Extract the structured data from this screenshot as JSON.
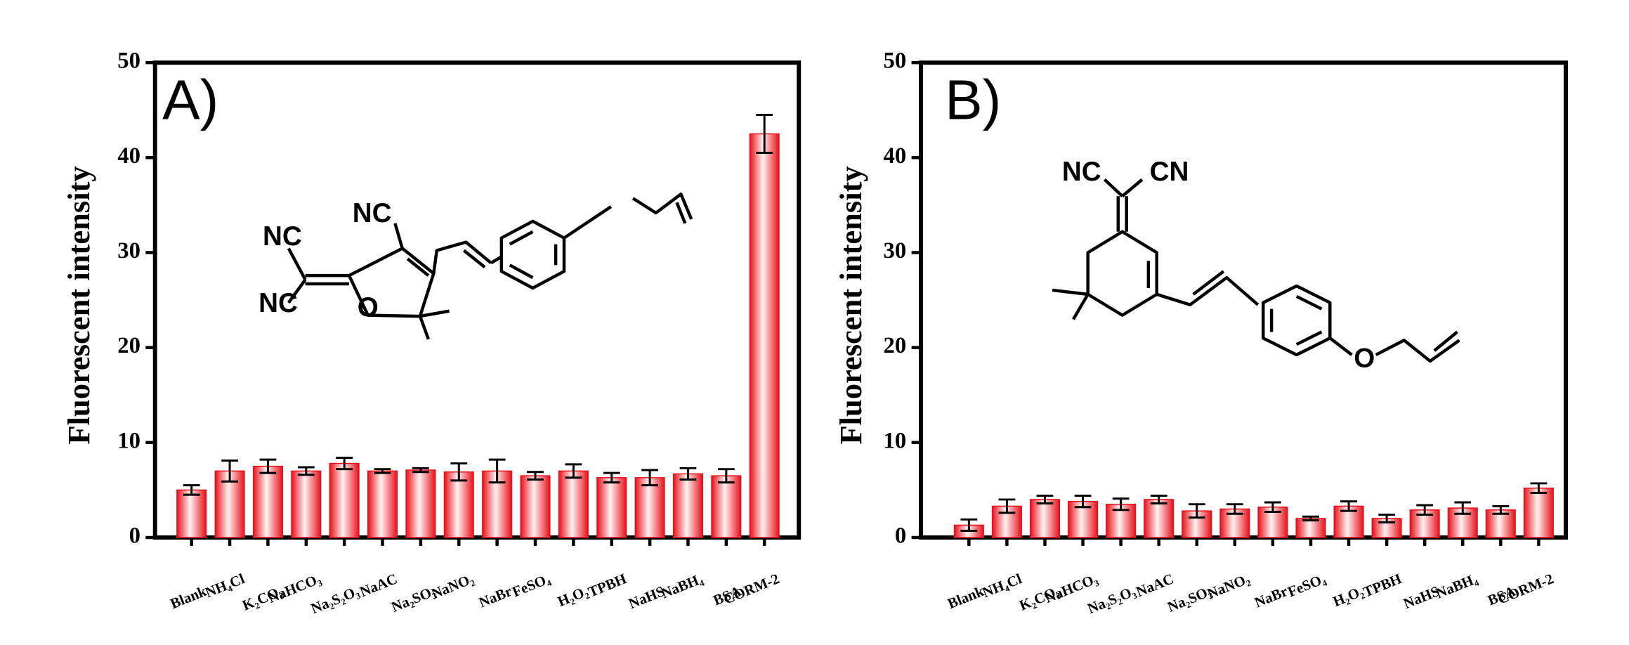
{
  "chart_data": [
    {
      "type": "bar",
      "panel_label": "A)",
      "y_label": "Fluorescent intensity",
      "categories": [
        "Blank",
        "NH₄Cl",
        "K₂CO₃",
        "NaHCO₃",
        "Na₂S₂O₃",
        "NaAC",
        "Na₂SO₃",
        "NaNO₂",
        "NaBr",
        "FeSO₄",
        "H₂O₂",
        "TPBH",
        "NaHS",
        "NaBH₄",
        "BSA",
        "CORM-2"
      ],
      "values": [
        5.0,
        7.0,
        7.5,
        7.0,
        7.8,
        7.0,
        7.1,
        6.9,
        7.0,
        6.5,
        7.0,
        6.3,
        6.3,
        6.7,
        6.5,
        42.5
      ],
      "errors": [
        0.5,
        1.1,
        0.7,
        0.4,
        0.6,
        0.2,
        0.2,
        0.9,
        1.2,
        0.4,
        0.7,
        0.5,
        0.8,
        0.6,
        0.7,
        2.0
      ],
      "color": "#e8101a",
      "ylim": [
        0,
        50
      ],
      "yticks": [
        0,
        10,
        20,
        30,
        40,
        50
      ],
      "annotations": [
        "NC",
        "NC",
        "NC",
        "O"
      ]
    },
    {
      "type": "bar",
      "panel_label": "B)",
      "y_label": "Fluorescent intensity",
      "categories": [
        "Blank",
        "NH₄Cl",
        "K₂CO₃",
        "NaHCO₃",
        "Na₂S₂O₃",
        "NaAC",
        "Na₂SO₃",
        "NaNO₂",
        "NaBr",
        "FeSO₄",
        "H₂O₂",
        "TPBH",
        "NaHS",
        "NaBH₄",
        "BSA",
        "CORM-2"
      ],
      "values": [
        1.3,
        3.3,
        4.0,
        3.8,
        3.5,
        4.0,
        2.8,
        3.0,
        3.2,
        2.0,
        3.3,
        2.0,
        2.9,
        3.1,
        2.9,
        5.2
      ],
      "errors": [
        0.6,
        0.7,
        0.4,
        0.6,
        0.6,
        0.4,
        0.7,
        0.5,
        0.5,
        0.2,
        0.5,
        0.4,
        0.5,
        0.6,
        0.4,
        0.5
      ],
      "color": "#e8101a",
      "ylim": [
        0,
        50
      ],
      "yticks": [
        0,
        10,
        20,
        30,
        40,
        50
      ],
      "annotations": [
        "NC",
        "CN",
        "O"
      ]
    }
  ]
}
